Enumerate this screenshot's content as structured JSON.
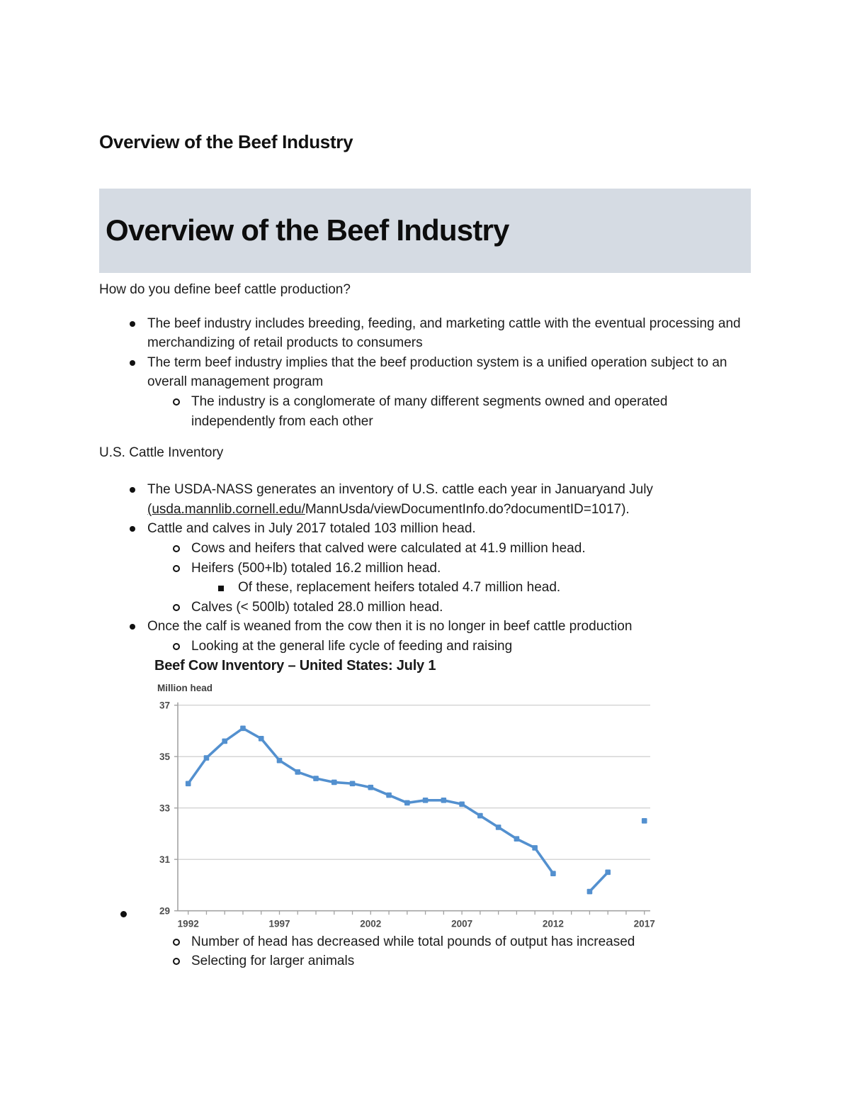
{
  "document": {
    "heading": "Overview of the Beef Industry",
    "banner_title": "Overview of the Beef Industry",
    "question1": "How do you define beef cattle production?",
    "bullet1": "The beef industry includes breeding, feeding, and marketing cattle with the eventual processing and merchandizing of retail products to consumers",
    "bullet2": "The term beef industry implies that the beef production system is a unified operation subject to an overall management program",
    "bullet2_sub1": "The industry is a conglomerate of many different segments owned and operated independently from each other",
    "question2": "U.S. Cattle Inventory",
    "bullet3_before_link": "The USDA-NASS generates an inventory of U.S. cattle each year in Januaryand July ",
    "bullet3_link": "(usda.mannlib.cornell.edu/",
    "bullet3_after_link": "MannUsda/viewDocumentInfo.do?documentID=1017).",
    "bullet4": "Cattle and calves in July 2017 totaled 103 million head.",
    "bullet4_sub1": "Cows and heifers that calved were calculated at 41.9 million head.",
    "bullet4_sub2": "Heifers (500+lb) totaled 16.2 million head.",
    "bullet4_sub2_sub1": "Of these, replacement heifers totaled 4.7 million head.",
    "bullet4_sub3": "Calves (< 500lb) totaled 28.0 million head.",
    "bullet5": "Once the calf is weaned from the cow then it is no longer in beef cattle production",
    "bullet5_sub1": "Looking at the general life cycle of feeding and raising",
    "after_chart_sub1": "Number of head has decreased while total pounds of output has increased",
    "after_chart_sub2": "Selecting for larger animals"
  },
  "chart_data": {
    "type": "line",
    "title": "Beef Cow Inventory – United States: July 1",
    "ylabel": "Million head",
    "xlabel": "",
    "ylim": [
      29,
      37
    ],
    "xlim": [
      1992,
      2017
    ],
    "yticks": [
      29,
      31,
      33,
      35,
      37
    ],
    "xticks": [
      1992,
      1997,
      2002,
      2007,
      2012,
      2017
    ],
    "grid": true,
    "legend": "none",
    "series_name": "Beef cow inventory (million head)",
    "series_color": "#5390cf",
    "gridline_color": "#c9c9c9",
    "axis_color": "#a3a3a3",
    "tick_label_color": "#4d4d4d",
    "segments": [
      [
        [
          1992,
          33.95
        ],
        [
          1993,
          34.95
        ],
        [
          1994,
          35.6
        ],
        [
          1995,
          36.1
        ],
        [
          1996,
          35.7
        ],
        [
          1997,
          34.85
        ],
        [
          1998,
          34.4
        ],
        [
          1999,
          34.15
        ],
        [
          2000,
          34.0
        ],
        [
          2001,
          33.95
        ],
        [
          2002,
          33.8
        ],
        [
          2003,
          33.5
        ],
        [
          2004,
          33.2
        ],
        [
          2005,
          33.3
        ],
        [
          2006,
          33.3
        ],
        [
          2007,
          33.15
        ],
        [
          2008,
          32.7
        ],
        [
          2009,
          32.25
        ],
        [
          2010,
          31.8
        ],
        [
          2011,
          31.45
        ],
        [
          2012,
          30.45
        ]
      ],
      [
        [
          2014,
          29.75
        ],
        [
          2015,
          30.5
        ]
      ],
      [
        [
          2017,
          32.5
        ]
      ]
    ],
    "notes": "Data gap: no July survey values shown for 2013 and 2016; 2017 point plotted without connecting line."
  }
}
